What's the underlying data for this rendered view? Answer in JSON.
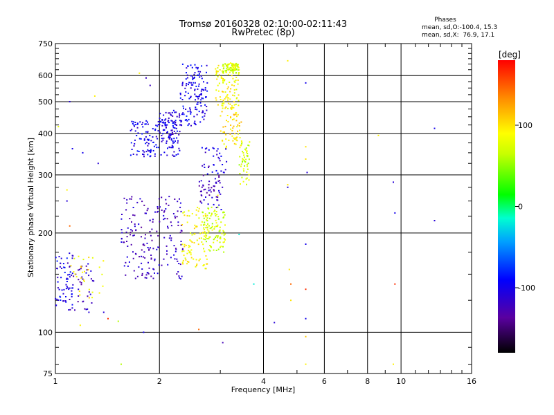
{
  "chart_data": {
    "type": "scatter",
    "title": "Tromsø 20160328 02:10:00-02:11:43",
    "subtitle": "RwPretec (8p)",
    "xlabel": "Frequency [MHz]",
    "ylabel": "Stationary phase Virtual Height [km]",
    "x_scale": "log",
    "y_scale": "log",
    "xlim": [
      1,
      16
    ],
    "ylim": [
      75,
      750
    ],
    "xticks": [
      1,
      2,
      4,
      6,
      8,
      10,
      16
    ],
    "yticks": [
      75,
      100,
      200,
      300,
      400,
      500,
      600,
      750
    ],
    "grid": true,
    "stats": {
      "heading": "Phases",
      "o_line": "mean, sd,O:-100.4, 15.3",
      "x_line": "mean, sd,X:  76.9, 17.1"
    },
    "colorbar": {
      "label": "[deg]",
      "range": [
        -180,
        180
      ],
      "ticks": [
        100,
        0,
        -100
      ]
    },
    "clusters": [
      {
        "f": [
          1.0,
          1.13
        ],
        "h": [
          120,
          175
        ],
        "phase": -100,
        "n": 60
      },
      {
        "f": [
          1.08,
          1.3
        ],
        "h": [
          115,
          165
        ],
        "phase": -120,
        "n": 45
      },
      {
        "f": [
          1.1,
          1.38
        ],
        "h": [
          125,
          172
        ],
        "phase": 95,
        "n": 28
      },
      {
        "f": [
          1.55,
          2.35
        ],
        "h": [
          145,
          260
        ],
        "phase": -120,
        "n": 190
      },
      {
        "f": [
          1.65,
          2.3
        ],
        "h": [
          340,
          440
        ],
        "phase": -100,
        "n": 150
      },
      {
        "f": [
          2.0,
          2.3
        ],
        "h": [
          380,
          470
        ],
        "phase": -110,
        "n": 60
      },
      {
        "f": [
          2.3,
          2.75
        ],
        "h": [
          420,
          650
        ],
        "phase": -100,
        "n": 140
      },
      {
        "f": [
          2.32,
          2.75
        ],
        "h": [
          155,
          240
        ],
        "phase": 90,
        "n": 90
      },
      {
        "f": [
          2.65,
          3.1
        ],
        "h": [
          175,
          240
        ],
        "phase": 70,
        "n": 110
      },
      {
        "f": [
          2.6,
          3.05
        ],
        "h": [
          235,
          300
        ],
        "phase": -120,
        "n": 55
      },
      {
        "f": [
          2.65,
          3.15
        ],
        "h": [
          300,
          370
        ],
        "phase": -110,
        "n": 35
      },
      {
        "f": [
          2.9,
          3.4
        ],
        "h": [
          470,
          650
        ],
        "phase": 90,
        "n": 110
      },
      {
        "f": [
          3.0,
          3.45
        ],
        "h": [
          360,
          470
        ],
        "phase": 100,
        "n": 60
      },
      {
        "f": [
          3.05,
          3.4
        ],
        "h": [
          610,
          655
        ],
        "phase": 70,
        "n": 70
      },
      {
        "f": [
          3.4,
          3.65
        ],
        "h": [
          280,
          380
        ],
        "phase": 70,
        "n": 50
      }
    ],
    "singles": [
      {
        "f": 1.02,
        "h": 420,
        "phase": 80
      },
      {
        "f": 1.1,
        "h": 500,
        "phase": -110
      },
      {
        "f": 1.12,
        "h": 360,
        "phase": -100
      },
      {
        "f": 1.2,
        "h": 350,
        "phase": -100
      },
      {
        "f": 1.33,
        "h": 325,
        "phase": -110
      },
      {
        "f": 1.3,
        "h": 520,
        "phase": 95
      },
      {
        "f": 1.08,
        "h": 250,
        "phase": -110
      },
      {
        "f": 1.08,
        "h": 270,
        "phase": 95
      },
      {
        "f": 1.1,
        "h": 210,
        "phase": 145
      },
      {
        "f": 1.18,
        "h": 105,
        "phase": 95
      },
      {
        "f": 1.25,
        "h": 115,
        "phase": -110
      },
      {
        "f": 1.38,
        "h": 115,
        "phase": -110
      },
      {
        "f": 1.42,
        "h": 110,
        "phase": 165
      },
      {
        "f": 1.52,
        "h": 108,
        "phase": 60
      },
      {
        "f": 1.55,
        "h": 80,
        "phase": 60
      },
      {
        "f": 1.8,
        "h": 100,
        "phase": -100
      },
      {
        "f": 1.83,
        "h": 590,
        "phase": -120
      },
      {
        "f": 1.88,
        "h": 560,
        "phase": -120
      },
      {
        "f": 1.75,
        "h": 610,
        "phase": 95
      },
      {
        "f": 2.75,
        "h": 570,
        "phase": -100
      },
      {
        "f": 2.6,
        "h": 102,
        "phase": 145
      },
      {
        "f": 2.95,
        "h": 260,
        "phase": 95
      },
      {
        "f": 3.05,
        "h": 93,
        "phase": -125
      },
      {
        "f": 3.4,
        "h": 198,
        "phase": -20
      },
      {
        "f": 3.75,
        "h": 140,
        "phase": -20
      },
      {
        "f": 4.3,
        "h": 107,
        "phase": -110
      },
      {
        "f": 4.7,
        "h": 665,
        "phase": 95
      },
      {
        "f": 4.7,
        "h": 280,
        "phase": 100
      },
      {
        "f": 4.7,
        "h": 275,
        "phase": -110
      },
      {
        "f": 4.75,
        "h": 155,
        "phase": 100
      },
      {
        "f": 4.8,
        "h": 140,
        "phase": 145
      },
      {
        "f": 4.8,
        "h": 125,
        "phase": 100
      },
      {
        "f": 5.3,
        "h": 570,
        "phase": -100
      },
      {
        "f": 5.3,
        "h": 365,
        "phase": 100
      },
      {
        "f": 5.3,
        "h": 335,
        "phase": 100
      },
      {
        "f": 5.35,
        "h": 305,
        "phase": -110
      },
      {
        "f": 5.3,
        "h": 185,
        "phase": -100
      },
      {
        "f": 5.3,
        "h": 135,
        "phase": 165
      },
      {
        "f": 5.3,
        "h": 110,
        "phase": -100
      },
      {
        "f": 5.3,
        "h": 97,
        "phase": 110
      },
      {
        "f": 5.3,
        "h": 80,
        "phase": 95
      },
      {
        "f": 8.6,
        "h": 395,
        "phase": 95
      },
      {
        "f": 9.5,
        "h": 285,
        "phase": -110
      },
      {
        "f": 9.6,
        "h": 230,
        "phase": -100
      },
      {
        "f": 9.6,
        "h": 140,
        "phase": 165
      },
      {
        "f": 9.5,
        "h": 80,
        "phase": 95
      },
      {
        "f": 12.5,
        "h": 415,
        "phase": -100
      },
      {
        "f": 12.5,
        "h": 218,
        "phase": -110
      }
    ]
  }
}
